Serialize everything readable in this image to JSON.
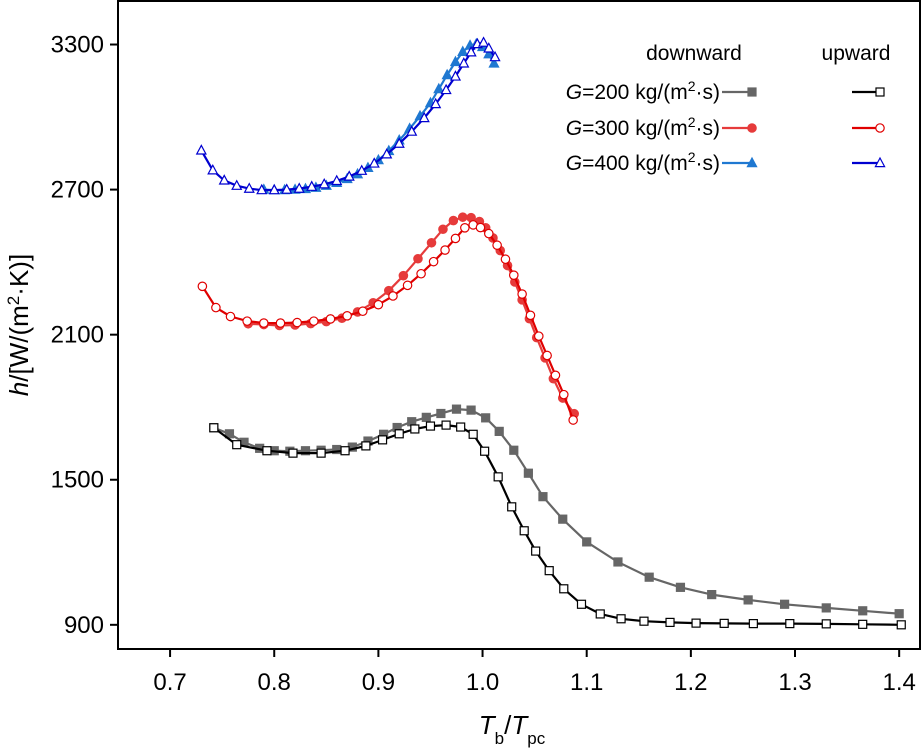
{
  "chart_data": {
    "type": "line",
    "xlabel": {
      "main": "T",
      "sub1": "b",
      "sep": "/",
      "main2": "T",
      "sub2": "pc"
    },
    "ylabel": {
      "italic": "h",
      "rest": "/[W/(m",
      "sup": "2",
      "rest2": "·K)]"
    },
    "xlim": [
      0.65,
      1.42
    ],
    "ylim": [
      800,
      3480
    ],
    "xticks": [
      "0.7",
      "0.8",
      "0.9",
      "1.0",
      "1.1",
      "1.2",
      "1.3",
      "1.4"
    ],
    "xtick_values": [
      0.7,
      0.8,
      0.9,
      1.0,
      1.1,
      1.2,
      1.3,
      1.4
    ],
    "yticks": [
      "900",
      "1500",
      "2100",
      "2700",
      "3300"
    ],
    "ytick_values": [
      900,
      1500,
      2100,
      2700,
      3300
    ],
    "legend": {
      "head_downward": "downward",
      "head_upward": "upward",
      "entries": [
        {
          "italic": "G",
          "text": "=200 kg/(m",
          "sup": "2",
          "text2": "·s)"
        },
        {
          "italic": "G",
          "text": "=300 kg/(m",
          "sup": "2",
          "text2": "·s)"
        },
        {
          "italic": "G",
          "text": "=400 kg/(m",
          "sup": "2",
          "text2": "·s)"
        }
      ]
    },
    "series": [
      {
        "name": "G=200 downward",
        "color": "#666666",
        "marker": "square",
        "filled": true,
        "x": [
          0.742,
          0.757,
          0.771,
          0.786,
          0.8,
          0.815,
          0.83,
          0.845,
          0.86,
          0.875,
          0.89,
          0.905,
          0.918,
          0.932,
          0.946,
          0.96,
          0.975,
          0.989,
          1.003,
          1.016,
          1.03,
          1.044,
          1.058,
          1.077,
          1.1,
          1.13,
          1.16,
          1.19,
          1.22,
          1.255,
          1.29,
          1.33,
          1.365,
          1.4
        ],
        "y": [
          1715,
          1690,
          1655,
          1630,
          1620,
          1618,
          1620,
          1622,
          1625,
          1635,
          1660,
          1688,
          1716,
          1740,
          1758,
          1774,
          1792,
          1788,
          1756,
          1700,
          1622,
          1527,
          1430,
          1337,
          1243,
          1160,
          1097,
          1055,
          1025,
          1003,
          985,
          970,
          958,
          946
        ]
      },
      {
        "name": "G=200 upward",
        "color": "#000000",
        "marker": "square",
        "filled": false,
        "x": [
          0.742,
          0.764,
          0.793,
          0.818,
          0.845,
          0.868,
          0.888,
          0.904,
          0.92,
          0.935,
          0.95,
          0.965,
          0.979,
          0.991,
          1.002,
          1.015,
          1.028,
          1.04,
          1.051,
          1.064,
          1.078,
          1.095,
          1.113,
          1.133,
          1.155,
          1.18,
          1.205,
          1.232,
          1.26,
          1.295,
          1.33,
          1.365,
          1.402
        ],
        "y": [
          1715,
          1645,
          1620,
          1610,
          1610,
          1620,
          1640,
          1665,
          1690,
          1710,
          1722,
          1726,
          1718,
          1688,
          1618,
          1512,
          1388,
          1289,
          1205,
          1124,
          1049,
          985,
          945,
          925,
          915,
          910,
          907,
          906,
          905,
          905,
          904,
          902,
          900
        ]
      },
      {
        "name": "G=300 downward",
        "color": "#e63b3b",
        "marker": "circle",
        "filled": true,
        "x": [
          0.775,
          0.79,
          0.805,
          0.82,
          0.835,
          0.85,
          0.865,
          0.88,
          0.895,
          0.91,
          0.924,
          0.938,
          0.951,
          0.962,
          0.972,
          0.981,
          0.989,
          0.997,
          1.003,
          1.01,
          1.017,
          1.024,
          1.031,
          1.038,
          1.045,
          1.052,
          1.06,
          1.068,
          1.077,
          1.088
        ],
        "y": [
          2145,
          2142,
          2138,
          2140,
          2146,
          2154,
          2168,
          2194,
          2232,
          2282,
          2344,
          2414,
          2480,
          2536,
          2572,
          2586,
          2584,
          2568,
          2542,
          2500,
          2448,
          2386,
          2318,
          2244,
          2166,
          2088,
          2004,
          1918,
          1838,
          1773
        ]
      },
      {
        "name": "G=300 upward",
        "color": "#e00000",
        "marker": "circle",
        "filled": false,
        "x": [
          0.731,
          0.744,
          0.758,
          0.774,
          0.79,
          0.806,
          0.822,
          0.838,
          0.854,
          0.87,
          0.885,
          0.9,
          0.914,
          0.928,
          0.941,
          0.953,
          0.964,
          0.974,
          0.983,
          0.991,
          0.998,
          1.006,
          1.014,
          1.022,
          1.03,
          1.038,
          1.046,
          1.054,
          1.062,
          1.07,
          1.078,
          1.087
        ],
        "y": [
          2300,
          2212,
          2175,
          2156,
          2148,
          2148,
          2150,
          2156,
          2165,
          2178,
          2197,
          2224,
          2260,
          2304,
          2352,
          2402,
          2450,
          2498,
          2542,
          2554,
          2543,
          2518,
          2470,
          2412,
          2346,
          2268,
          2180,
          2094,
          2014,
          1932,
          1852,
          1747
        ]
      },
      {
        "name": "G=400 downward",
        "color": "#1f78d1",
        "marker": "triangle",
        "filled": true,
        "x": [
          0.79,
          0.8,
          0.81,
          0.82,
          0.83,
          0.84,
          0.85,
          0.86,
          0.87,
          0.88,
          0.89,
          0.9,
          0.91,
          0.92,
          0.93,
          0.94,
          0.95,
          0.958,
          0.966,
          0.974,
          0.981,
          0.988,
          0.994,
          1.0,
          1.006,
          1.011
        ],
        "y": [
          2700,
          2698,
          2698,
          2700,
          2703,
          2708,
          2716,
          2728,
          2744,
          2764,
          2790,
          2822,
          2860,
          2904,
          2952,
          3004,
          3058,
          3116,
          3174,
          3228,
          3270,
          3296,
          3302,
          3290,
          3260,
          3222
        ]
      },
      {
        "name": "G=400 upward",
        "color": "#0000d0",
        "marker": "triangle",
        "filled": false,
        "x": [
          0.73,
          0.741,
          0.752,
          0.764,
          0.776,
          0.788,
          0.8,
          0.812,
          0.824,
          0.836,
          0.848,
          0.86,
          0.872,
          0.884,
          0.896,
          0.908,
          0.92,
          0.932,
          0.944,
          0.955,
          0.965,
          0.974,
          0.982,
          0.989,
          0.995,
          1.001,
          1.006,
          1.012
        ],
        "y": [
          2862,
          2780,
          2738,
          2716,
          2704,
          2698,
          2698,
          2700,
          2704,
          2712,
          2722,
          2736,
          2754,
          2778,
          2808,
          2846,
          2890,
          2940,
          2996,
          3054,
          3112,
          3168,
          3222,
          3268,
          3302,
          3308,
          3284,
          3248
        ]
      }
    ]
  }
}
